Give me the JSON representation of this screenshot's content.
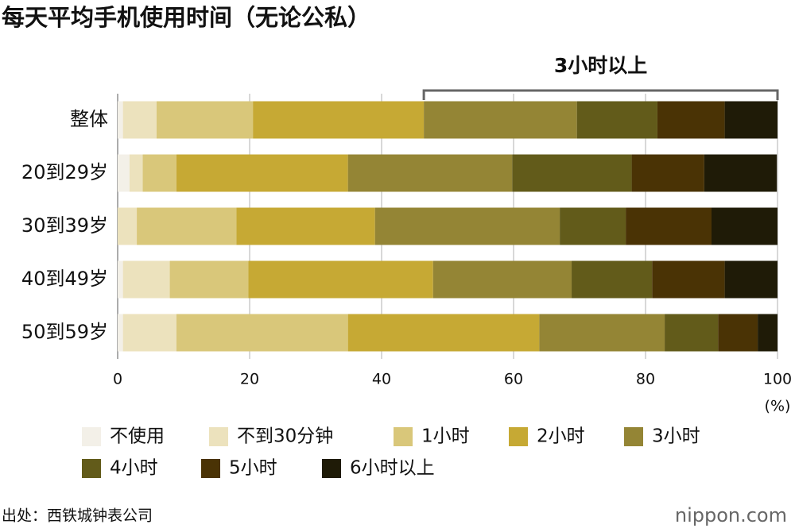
{
  "chart_data": {
    "type": "stacked_bar_horizontal",
    "title": "每天平均手机使用时间（无论公私）",
    "annotation": "3小时以上",
    "x_unit_label": "(%)",
    "categories": [
      "整体",
      "20到29岁",
      "30到39岁",
      "40到49岁",
      "50到59岁"
    ],
    "series": [
      {
        "name": "不使用",
        "color": "#f3f0e8",
        "values": [
          0.8,
          1.8,
          0,
          0.8,
          0.8
        ]
      },
      {
        "name": "不到30分钟",
        "color": "#ece2bd",
        "values": [
          5.1,
          2.0,
          2.9,
          7.1,
          8.1
        ]
      },
      {
        "name": "1小时",
        "color": "#d9c77a",
        "values": [
          14.6,
          5.1,
          15.1,
          11.9,
          26.0
        ]
      },
      {
        "name": "2小时",
        "color": "#c6a934",
        "values": [
          25.9,
          26.0,
          21.0,
          28.0,
          29.0
        ]
      },
      {
        "name": "3小时",
        "color": "#948535",
        "values": [
          23.2,
          24.9,
          28.0,
          21.0,
          19.0
        ]
      },
      {
        "name": "4小时",
        "color": "#625b1a",
        "values": [
          12.2,
          18.1,
          10.0,
          12.2,
          8.1
        ]
      },
      {
        "name": "5小时",
        "color": "#4a3305",
        "values": [
          10.2,
          11.0,
          13.0,
          11.0,
          6.0
        ]
      },
      {
        "name": "6小时以上",
        "color": "#1f1b07",
        "values": [
          8.0,
          11.0,
          10.0,
          8.0,
          3.0
        ]
      }
    ],
    "xlim": [
      0,
      100
    ],
    "xticks": [
      0,
      20,
      40,
      60,
      80,
      100
    ],
    "grid": true,
    "source": "出处：西铁城钟表公司",
    "brand": "nippon.com"
  }
}
